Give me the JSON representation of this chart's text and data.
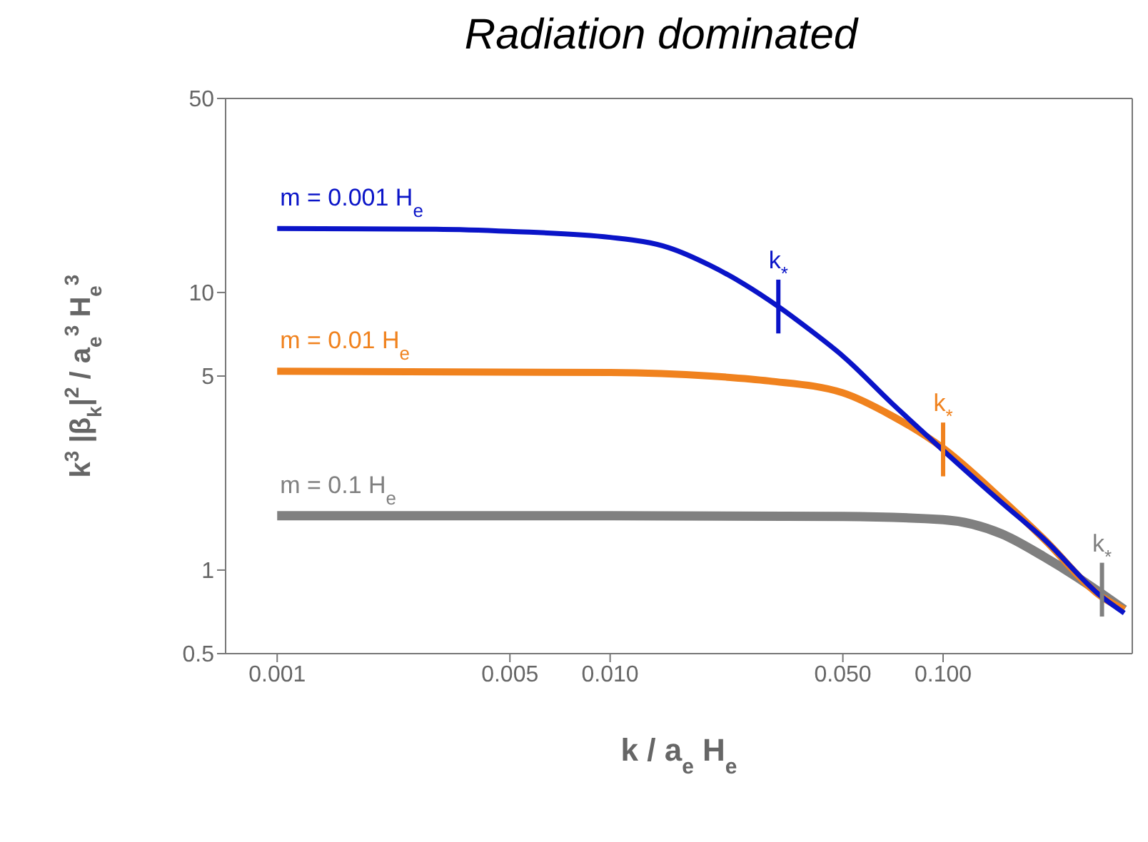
{
  "chart_data": {
    "type": "line",
    "title": "Radiation dominated",
    "xlabel": "k / a$_{e}$ H$_{e}$",
    "ylabel": "k$^{3}$ |β$_{k}$|$^{2}$ / a$_{e}$$^{3}$ H$_{e}$$^{3}$",
    "log": "xy",
    "marker": "none",
    "line_style": "solid",
    "xlim": [
      0.0007,
      0.37
    ],
    "ylim": [
      0.5,
      50
    ],
    "xticks": [
      0.001,
      0.005,
      {
        "value": 0.01,
        "label": "0.010"
      },
      {
        "value": 0.05,
        "label": "0.050"
      },
      {
        "value": 0.1,
        "label": "0.100"
      }
    ],
    "yticks": [
      0.5,
      1,
      5,
      10,
      50
    ],
    "series": [
      {
        "name": "m = 0.001 H$_{e}$",
        "color": "#0a14c8",
        "x": [
          0.001,
          0.003,
          0.005,
          0.01,
          0.015,
          0.02,
          0.025,
          0.032,
          0.04,
          0.05,
          0.07,
          0.1,
          0.15,
          0.2,
          0.3,
          0.35
        ],
        "values": [
          17,
          16.9,
          16.6,
          15.8,
          14.5,
          12.5,
          10.8,
          8.9,
          7.3,
          5.9,
          4.0,
          2.7,
          1.75,
          1.3,
          0.8,
          0.7
        ]
      },
      {
        "name": "m = 0.01 H$_{e}$",
        "color": "#f0821e",
        "x": [
          0.001,
          0.01,
          0.02,
          0.03,
          0.05,
          0.07,
          0.1,
          0.15,
          0.2,
          0.3,
          0.35
        ],
        "values": [
          5.2,
          5.15,
          5.0,
          4.8,
          4.35,
          3.6,
          2.75,
          1.8,
          1.3,
          0.8,
          0.72
        ]
      },
      {
        "name": "m = 0.1 H$_{e}$",
        "color": "#808080",
        "x": [
          0.001,
          0.01,
          0.05,
          0.1,
          0.15,
          0.2,
          0.25,
          0.3,
          0.35
        ],
        "values": [
          1.57,
          1.57,
          1.56,
          1.52,
          1.35,
          1.12,
          0.95,
          0.82,
          0.72
        ]
      }
    ],
    "annotations": [
      {
        "text": "k$_{*}$",
        "x": 0.032,
        "y": 8.9
      },
      {
        "text": "k$_{*}$",
        "x": 0.1,
        "y": 2.72
      },
      {
        "text": "k$_{*}$",
        "x": 0.3,
        "y": 0.85
      }
    ]
  }
}
